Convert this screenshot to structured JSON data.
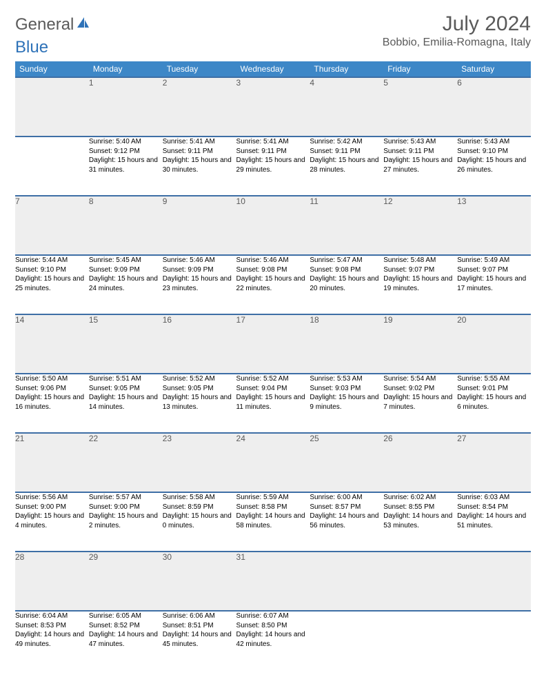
{
  "brand": {
    "part1": "General",
    "part2": "Blue"
  },
  "title": "July 2024",
  "location": "Bobbio, Emilia-Romagna, Italy",
  "colors": {
    "header_bg": "#3d87c7",
    "header_text": "#ffffff",
    "rule": "#3d6ea5",
    "daynum_bg": "#eeeeee",
    "text_muted": "#5a5a5a",
    "brand_blue": "#2e72b8"
  },
  "weekdays": [
    "Sunday",
    "Monday",
    "Tuesday",
    "Wednesday",
    "Thursday",
    "Friday",
    "Saturday"
  ],
  "weeks": [
    [
      {
        "n": "",
        "sr": "",
        "ss": "",
        "dl": ""
      },
      {
        "n": "1",
        "sr": "Sunrise: 5:40 AM",
        "ss": "Sunset: 9:12 PM",
        "dl": "Daylight: 15 hours and 31 minutes."
      },
      {
        "n": "2",
        "sr": "Sunrise: 5:41 AM",
        "ss": "Sunset: 9:11 PM",
        "dl": "Daylight: 15 hours and 30 minutes."
      },
      {
        "n": "3",
        "sr": "Sunrise: 5:41 AM",
        "ss": "Sunset: 9:11 PM",
        "dl": "Daylight: 15 hours and 29 minutes."
      },
      {
        "n": "4",
        "sr": "Sunrise: 5:42 AM",
        "ss": "Sunset: 9:11 PM",
        "dl": "Daylight: 15 hours and 28 minutes."
      },
      {
        "n": "5",
        "sr": "Sunrise: 5:43 AM",
        "ss": "Sunset: 9:11 PM",
        "dl": "Daylight: 15 hours and 27 minutes."
      },
      {
        "n": "6",
        "sr": "Sunrise: 5:43 AM",
        "ss": "Sunset: 9:10 PM",
        "dl": "Daylight: 15 hours and 26 minutes."
      }
    ],
    [
      {
        "n": "7",
        "sr": "Sunrise: 5:44 AM",
        "ss": "Sunset: 9:10 PM",
        "dl": "Daylight: 15 hours and 25 minutes."
      },
      {
        "n": "8",
        "sr": "Sunrise: 5:45 AM",
        "ss": "Sunset: 9:09 PM",
        "dl": "Daylight: 15 hours and 24 minutes."
      },
      {
        "n": "9",
        "sr": "Sunrise: 5:46 AM",
        "ss": "Sunset: 9:09 PM",
        "dl": "Daylight: 15 hours and 23 minutes."
      },
      {
        "n": "10",
        "sr": "Sunrise: 5:46 AM",
        "ss": "Sunset: 9:08 PM",
        "dl": "Daylight: 15 hours and 22 minutes."
      },
      {
        "n": "11",
        "sr": "Sunrise: 5:47 AM",
        "ss": "Sunset: 9:08 PM",
        "dl": "Daylight: 15 hours and 20 minutes."
      },
      {
        "n": "12",
        "sr": "Sunrise: 5:48 AM",
        "ss": "Sunset: 9:07 PM",
        "dl": "Daylight: 15 hours and 19 minutes."
      },
      {
        "n": "13",
        "sr": "Sunrise: 5:49 AM",
        "ss": "Sunset: 9:07 PM",
        "dl": "Daylight: 15 hours and 17 minutes."
      }
    ],
    [
      {
        "n": "14",
        "sr": "Sunrise: 5:50 AM",
        "ss": "Sunset: 9:06 PM",
        "dl": "Daylight: 15 hours and 16 minutes."
      },
      {
        "n": "15",
        "sr": "Sunrise: 5:51 AM",
        "ss": "Sunset: 9:05 PM",
        "dl": "Daylight: 15 hours and 14 minutes."
      },
      {
        "n": "16",
        "sr": "Sunrise: 5:52 AM",
        "ss": "Sunset: 9:05 PM",
        "dl": "Daylight: 15 hours and 13 minutes."
      },
      {
        "n": "17",
        "sr": "Sunrise: 5:52 AM",
        "ss": "Sunset: 9:04 PM",
        "dl": "Daylight: 15 hours and 11 minutes."
      },
      {
        "n": "18",
        "sr": "Sunrise: 5:53 AM",
        "ss": "Sunset: 9:03 PM",
        "dl": "Daylight: 15 hours and 9 minutes."
      },
      {
        "n": "19",
        "sr": "Sunrise: 5:54 AM",
        "ss": "Sunset: 9:02 PM",
        "dl": "Daylight: 15 hours and 7 minutes."
      },
      {
        "n": "20",
        "sr": "Sunrise: 5:55 AM",
        "ss": "Sunset: 9:01 PM",
        "dl": "Daylight: 15 hours and 6 minutes."
      }
    ],
    [
      {
        "n": "21",
        "sr": "Sunrise: 5:56 AM",
        "ss": "Sunset: 9:00 PM",
        "dl": "Daylight: 15 hours and 4 minutes."
      },
      {
        "n": "22",
        "sr": "Sunrise: 5:57 AM",
        "ss": "Sunset: 9:00 PM",
        "dl": "Daylight: 15 hours and 2 minutes."
      },
      {
        "n": "23",
        "sr": "Sunrise: 5:58 AM",
        "ss": "Sunset: 8:59 PM",
        "dl": "Daylight: 15 hours and 0 minutes."
      },
      {
        "n": "24",
        "sr": "Sunrise: 5:59 AM",
        "ss": "Sunset: 8:58 PM",
        "dl": "Daylight: 14 hours and 58 minutes."
      },
      {
        "n": "25",
        "sr": "Sunrise: 6:00 AM",
        "ss": "Sunset: 8:57 PM",
        "dl": "Daylight: 14 hours and 56 minutes."
      },
      {
        "n": "26",
        "sr": "Sunrise: 6:02 AM",
        "ss": "Sunset: 8:55 PM",
        "dl": "Daylight: 14 hours and 53 minutes."
      },
      {
        "n": "27",
        "sr": "Sunrise: 6:03 AM",
        "ss": "Sunset: 8:54 PM",
        "dl": "Daylight: 14 hours and 51 minutes."
      }
    ],
    [
      {
        "n": "28",
        "sr": "Sunrise: 6:04 AM",
        "ss": "Sunset: 8:53 PM",
        "dl": "Daylight: 14 hours and 49 minutes."
      },
      {
        "n": "29",
        "sr": "Sunrise: 6:05 AM",
        "ss": "Sunset: 8:52 PM",
        "dl": "Daylight: 14 hours and 47 minutes."
      },
      {
        "n": "30",
        "sr": "Sunrise: 6:06 AM",
        "ss": "Sunset: 8:51 PM",
        "dl": "Daylight: 14 hours and 45 minutes."
      },
      {
        "n": "31",
        "sr": "Sunrise: 6:07 AM",
        "ss": "Sunset: 8:50 PM",
        "dl": "Daylight: 14 hours and 42 minutes."
      },
      {
        "n": "",
        "sr": "",
        "ss": "",
        "dl": ""
      },
      {
        "n": "",
        "sr": "",
        "ss": "",
        "dl": ""
      },
      {
        "n": "",
        "sr": "",
        "ss": "",
        "dl": ""
      }
    ]
  ]
}
